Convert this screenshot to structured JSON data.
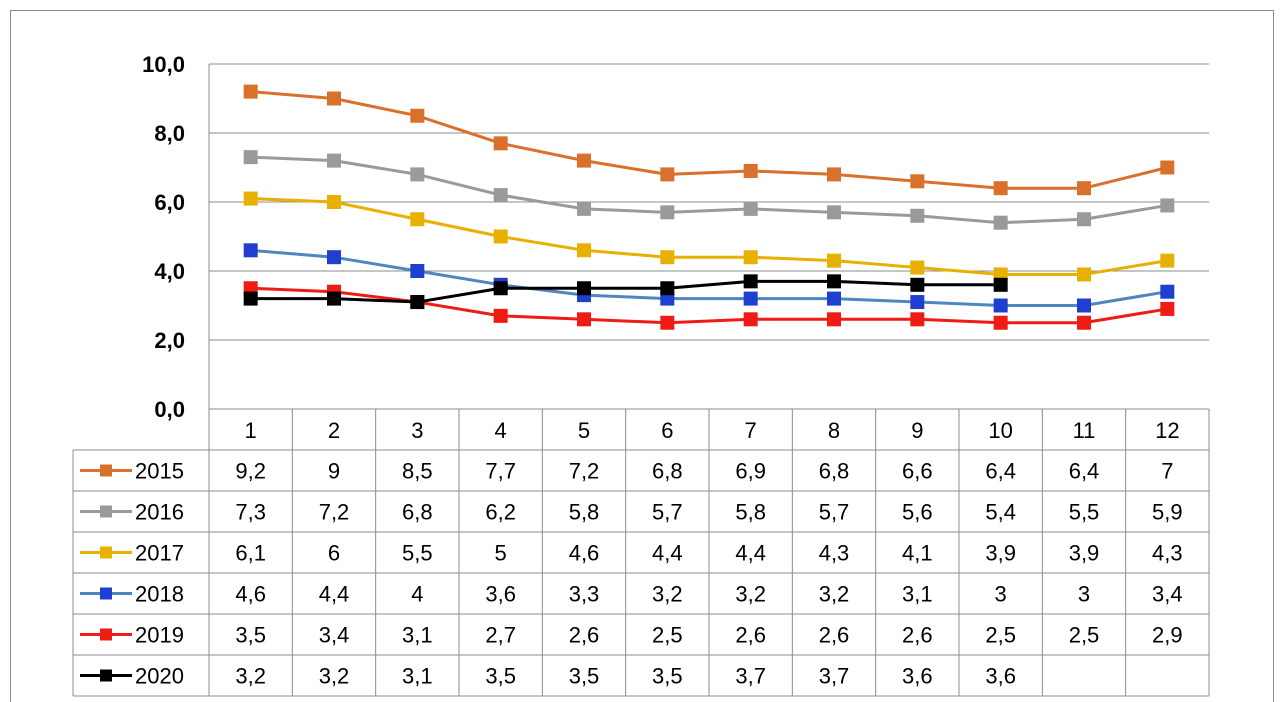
{
  "chart_data": {
    "type": "line",
    "title": "",
    "xlabel": "",
    "ylabel": "",
    "ylim": [
      0,
      10
    ],
    "yticks": [
      "0,0",
      "2,0",
      "4,0",
      "6,0",
      "8,0",
      "10,0"
    ],
    "grid": true,
    "legend": "data-table",
    "categories": [
      "1",
      "2",
      "3",
      "4",
      "5",
      "6",
      "7",
      "8",
      "9",
      "10",
      "11",
      "12"
    ],
    "series": [
      {
        "name": "2015",
        "color": "#D9702B",
        "values": [
          9.2,
          9,
          8.5,
          7.7,
          7.2,
          6.8,
          6.9,
          6.8,
          6.6,
          6.4,
          6.4,
          7
        ],
        "labels": [
          "9,2",
          "9",
          "8,5",
          "7,7",
          "7,2",
          "6,8",
          "6,9",
          "6,8",
          "6,6",
          "6,4",
          "6,4",
          "7"
        ]
      },
      {
        "name": "2016",
        "color": "#9A9A9A",
        "values": [
          7.3,
          7.2,
          6.8,
          6.2,
          5.8,
          5.7,
          5.8,
          5.7,
          5.6,
          5.4,
          5.5,
          5.9
        ],
        "labels": [
          "7,3",
          "7,2",
          "6,8",
          "6,2",
          "5,8",
          "5,7",
          "5,8",
          "5,7",
          "5,6",
          "5,4",
          "5,5",
          "5,9"
        ]
      },
      {
        "name": "2017",
        "color": "#E8B000",
        "values": [
          6.1,
          6,
          5.5,
          5,
          4.6,
          4.4,
          4.4,
          4.3,
          4.1,
          3.9,
          3.9,
          4.3
        ],
        "labels": [
          "6,1",
          "6",
          "5,5",
          "5",
          "4,6",
          "4,4",
          "4,4",
          "4,3",
          "4,1",
          "3,9",
          "3,9",
          "4,3"
        ]
      },
      {
        "name": "2018",
        "color": "#4F86C0",
        "marker": "#1F3FD0",
        "values": [
          4.6,
          4.4,
          4,
          3.6,
          3.3,
          3.2,
          3.2,
          3.2,
          3.1,
          3,
          3,
          3.4
        ],
        "labels": [
          "4,6",
          "4,4",
          "4",
          "3,6",
          "3,3",
          "3,2",
          "3,2",
          "3,2",
          "3,1",
          "3",
          "3",
          "3,4"
        ]
      },
      {
        "name": "2019",
        "color": "#EE1C14",
        "values": [
          3.5,
          3.4,
          3.1,
          2.7,
          2.6,
          2.5,
          2.6,
          2.6,
          2.6,
          2.5,
          2.5,
          2.9
        ],
        "labels": [
          "3,5",
          "3,4",
          "3,1",
          "2,7",
          "2,6",
          "2,5",
          "2,6",
          "2,6",
          "2,6",
          "2,5",
          "2,5",
          "2,9"
        ]
      },
      {
        "name": "2020",
        "color": "#000000",
        "values": [
          3.2,
          3.2,
          3.1,
          3.5,
          3.5,
          3.5,
          3.7,
          3.7,
          3.6,
          3.6,
          null,
          null
        ],
        "labels": [
          "3,2",
          "3,2",
          "3,1",
          "3,5",
          "3,5",
          "3,5",
          "3,7",
          "3,7",
          "3,6",
          "3,6",
          "",
          ""
        ]
      }
    ]
  }
}
